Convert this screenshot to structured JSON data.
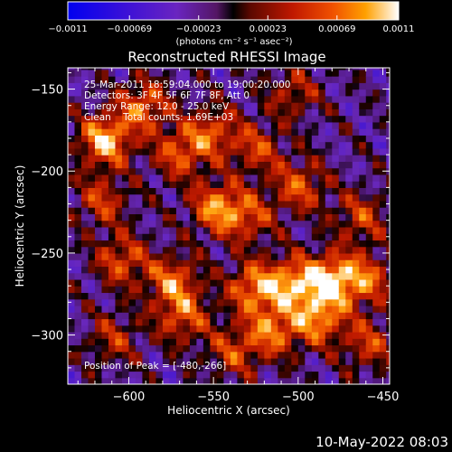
{
  "colorbar": {
    "tick_labels": [
      "-0.0011",
      "-0.00069",
      "-0.00023",
      "0.00023",
      "0.00069",
      "0.0011"
    ],
    "unit_label": "(photons cm⁻² s⁻¹ asec⁻²)",
    "range": [
      -0.0011,
      0.0011
    ]
  },
  "chart_data": {
    "type": "heatmap",
    "title": "Reconstructed RHESSI Image",
    "xlabel": "Heliocentric X (arcsec)",
    "ylabel": "Heliocentric Y (arcsec)",
    "xlim": [
      -636,
      -446
    ],
    "ylim": [
      -330,
      -137
    ],
    "xticks": [
      -600,
      -550,
      -500,
      -450
    ],
    "yticks": [
      -150,
      -200,
      -250,
      -300
    ],
    "xtick_labels": [
      "−600",
      "−550",
      "−500",
      "−450"
    ],
    "ytick_labels": [
      "−150",
      "−200",
      "−250",
      "−300"
    ],
    "peak_position": [
      -480,
      -266
    ],
    "sources": [
      {
        "x": -614,
        "y": -181,
        "s": 0.0011
      },
      {
        "x": -591,
        "y": -160,
        "s": 0.0008
      },
      {
        "x": -570,
        "y": -189,
        "s": 0.0007
      },
      {
        "x": -551,
        "y": -176,
        "s": 0.0007
      },
      {
        "x": -548,
        "y": -222,
        "s": 0.0009
      },
      {
        "x": -529,
        "y": -228,
        "s": 0.0006
      },
      {
        "x": -604,
        "y": -254,
        "s": 0.0007
      },
      {
        "x": -574,
        "y": -267,
        "s": 0.0008
      },
      {
        "x": -568,
        "y": -289,
        "s": 0.0007
      },
      {
        "x": -526,
        "y": -271,
        "s": 0.0009
      },
      {
        "x": -503,
        "y": -268,
        "s": 0.0009
      },
      {
        "x": -480,
        "y": -266,
        "s": 0.0011
      },
      {
        "x": -488,
        "y": -290,
        "s": 0.0009
      },
      {
        "x": -515,
        "y": -297,
        "s": 0.0008
      },
      {
        "x": -499,
        "y": -209,
        "s": 0.0007
      },
      {
        "x": -524,
        "y": -186,
        "s": 0.0006
      },
      {
        "x": -463,
        "y": -228,
        "s": 0.0006
      },
      {
        "x": -459,
        "y": -266,
        "s": 0.0007
      },
      {
        "x": -458,
        "y": -305,
        "s": 0.0006
      },
      {
        "x": -609,
        "y": -302,
        "s": 0.0005
      },
      {
        "x": -503,
        "y": -152,
        "s": 0.0005
      },
      {
        "x": -616,
        "y": -218,
        "s": 0.0006
      },
      {
        "x": -538,
        "y": -310,
        "s": 0.0006
      }
    ],
    "annotations": [
      "25-Mar-2011 18:59:04.000 to 19:00:20.000",
      "Detectors: 3F 4F 5F 6F 7F 8F, Att 0",
      "Energy Range: 12.0 - 25.0 keV",
      "Clean    Total counts: 1.69E+03",
      "Position of Peak = [-480,-266]"
    ]
  },
  "timestamp": "10-May-2022 08:03"
}
